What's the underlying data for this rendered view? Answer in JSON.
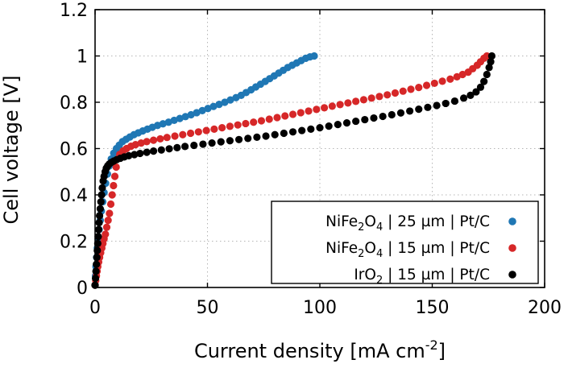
{
  "chart_data": {
    "type": "scatter",
    "title": "",
    "xlabel": "Current density [mA cm",
    "xlabel_sup": "-2",
    "xlabel_end": "]",
    "ylabel": "Cell voltage [V]",
    "xlim": [
      0,
      200
    ],
    "ylim": [
      0,
      1.2
    ],
    "grid": true,
    "legend_position": "lower-right",
    "xticks": [
      0,
      50,
      100,
      150,
      200
    ],
    "xtick_labels": [
      "0",
      "50",
      "100",
      "150",
      "200"
    ],
    "yticks": [
      0,
      0.2,
      0.4,
      0.6,
      0.8,
      1.0,
      1.2
    ],
    "ytick_labels": [
      "0",
      "0.2",
      "0.4",
      "0.6",
      "0.8",
      "1",
      "1.2"
    ],
    "series": [
      {
        "name": "NiFe2O4 | 25 µm | Pt/C",
        "label_parts": [
          "NiFe",
          "2",
          "O",
          "4",
          " | 25 µm | Pt/C"
        ],
        "color": "#1f77b4",
        "x": [
          0,
          0.2,
          0.4,
          0.7,
          1.0,
          1.4,
          1.8,
          2.3,
          2.8,
          3.4,
          4.0,
          4.7,
          5.5,
          6.3,
          7.2,
          8.3,
          9.5,
          10.8,
          12.2,
          13.8,
          15.5,
          17.3,
          19.2,
          21.2,
          23.3,
          25.5,
          27.8,
          30.2,
          32.7,
          35.2,
          37.7,
          40.2,
          42.7,
          45.2,
          47.7,
          50.2,
          52.7,
          55.2,
          57.7,
          60.2,
          62.7,
          65.0,
          67.2,
          69.4,
          71.5,
          73.6,
          75.7,
          77.7,
          79.7,
          81.7,
          83.7,
          85.7,
          87.7,
          89.7,
          91.7,
          93.7,
          95.6,
          97.5
        ],
        "y": [
          0.01,
          0.05,
          0.09,
          0.13,
          0.17,
          0.21,
          0.25,
          0.29,
          0.33,
          0.37,
          0.41,
          0.45,
          0.49,
          0.525,
          0.555,
          0.58,
          0.6,
          0.615,
          0.63,
          0.64,
          0.65,
          0.66,
          0.668,
          0.676,
          0.684,
          0.692,
          0.7,
          0.707,
          0.714,
          0.722,
          0.73,
          0.738,
          0.746,
          0.755,
          0.764,
          0.773,
          0.782,
          0.791,
          0.8,
          0.81,
          0.82,
          0.83,
          0.842,
          0.854,
          0.866,
          0.878,
          0.89,
          0.902,
          0.914,
          0.926,
          0.938,
          0.95,
          0.96,
          0.97,
          0.98,
          0.99,
          0.996,
          1.0
        ]
      },
      {
        "name": "NiFe2O4 | 15 µm | Pt/C",
        "label_parts": [
          "NiFe",
          "2",
          "O",
          "4",
          " | 15 µm | Pt/C"
        ],
        "color": "#d62728",
        "x": [
          0,
          0.3,
          0.6,
          0.9,
          1.2,
          1.6,
          2.0,
          2.5,
          3.0,
          3.5,
          4.0,
          4.6,
          5.2,
          5.8,
          6.4,
          7.0,
          7.6,
          8.2,
          8.8,
          9.4,
          10.0,
          11.0,
          12.5,
          14.0,
          16.0,
          18.0,
          20.5,
          23.0,
          26.0,
          29.0,
          32.0,
          35.5,
          39.0,
          42.5,
          46.0,
          49.5,
          53.0,
          56.5,
          60.0,
          63.5,
          67.0,
          70.5,
          74.0,
          77.5,
          81.0,
          84.5,
          88.0,
          91.5,
          95.0,
          98.5,
          102.0,
          105.5,
          109.0,
          112.5,
          116.0,
          119.5,
          123.0,
          126.5,
          130.0,
          133.5,
          137.0,
          140.5,
          144.0,
          147.5,
          151.0,
          154.5,
          158.0,
          161.0,
          163.5,
          166.0,
          168.0,
          170.0,
          171.5,
          173.0,
          174.3
        ],
        "y": [
          0.01,
          0.03,
          0.05,
          0.07,
          0.09,
          0.11,
          0.13,
          0.15,
          0.17,
          0.19,
          0.21,
          0.23,
          0.26,
          0.29,
          0.32,
          0.36,
          0.4,
          0.44,
          0.48,
          0.52,
          0.555,
          0.575,
          0.59,
          0.6,
          0.61,
          0.617,
          0.624,
          0.63,
          0.636,
          0.642,
          0.648,
          0.654,
          0.66,
          0.666,
          0.672,
          0.678,
          0.684,
          0.69,
          0.696,
          0.702,
          0.708,
          0.714,
          0.72,
          0.727,
          0.734,
          0.741,
          0.748,
          0.755,
          0.762,
          0.769,
          0.776,
          0.783,
          0.79,
          0.797,
          0.804,
          0.811,
          0.818,
          0.825,
          0.832,
          0.84,
          0.848,
          0.856,
          0.864,
          0.873,
          0.882,
          0.891,
          0.9,
          0.91,
          0.92,
          0.93,
          0.945,
          0.96,
          0.975,
          0.99,
          1.0
        ]
      },
      {
        "name": "IrO2 | 15 µm | Pt/C",
        "label_parts": [
          "IrO",
          "2",
          "",
          "",
          " | 15 µm | Pt/C"
        ],
        "color": "#000000",
        "x": [
          0,
          0.2,
          0.4,
          0.6,
          0.8,
          1.0,
          1.2,
          1.4,
          1.6,
          1.8,
          2.0,
          2.3,
          2.6,
          2.9,
          3.2,
          3.6,
          4.0,
          4.5,
          5.0,
          5.6,
          6.3,
          7.2,
          8.3,
          9.6,
          11.2,
          13.0,
          15.0,
          17.5,
          20.0,
          23.0,
          26.0,
          29.5,
          33.0,
          36.5,
          40.0,
          44.0,
          48.0,
          52.0,
          56.0,
          60.0,
          64.0,
          68.0,
          72.0,
          76.0,
          80.0,
          84.0,
          88.0,
          92.0,
          96.0,
          100.0,
          104.0,
          108.0,
          112.0,
          116.0,
          120.0,
          124.0,
          128.0,
          132.0,
          136.0,
          140.0,
          144.0,
          148.0,
          152.0,
          156.0,
          160.0,
          164.0,
          167.0,
          169.5,
          171.5,
          173.0,
          174.3,
          175.3,
          176.0,
          176.5
        ],
        "y": [
          0.01,
          0.04,
          0.07,
          0.1,
          0.13,
          0.16,
          0.19,
          0.22,
          0.25,
          0.28,
          0.31,
          0.34,
          0.37,
          0.4,
          0.43,
          0.46,
          0.48,
          0.5,
          0.515,
          0.525,
          0.533,
          0.54,
          0.546,
          0.552,
          0.558,
          0.564,
          0.569,
          0.574,
          0.579,
          0.584,
          0.589,
          0.594,
          0.599,
          0.604,
          0.609,
          0.614,
          0.619,
          0.624,
          0.629,
          0.634,
          0.639,
          0.644,
          0.649,
          0.654,
          0.66,
          0.666,
          0.672,
          0.678,
          0.684,
          0.69,
          0.697,
          0.704,
          0.711,
          0.718,
          0.725,
          0.732,
          0.739,
          0.746,
          0.754,
          0.762,
          0.77,
          0.778,
          0.786,
          0.795,
          0.805,
          0.818,
          0.83,
          0.845,
          0.865,
          0.89,
          0.92,
          0.95,
          0.975,
          1.0
        ]
      }
    ]
  }
}
